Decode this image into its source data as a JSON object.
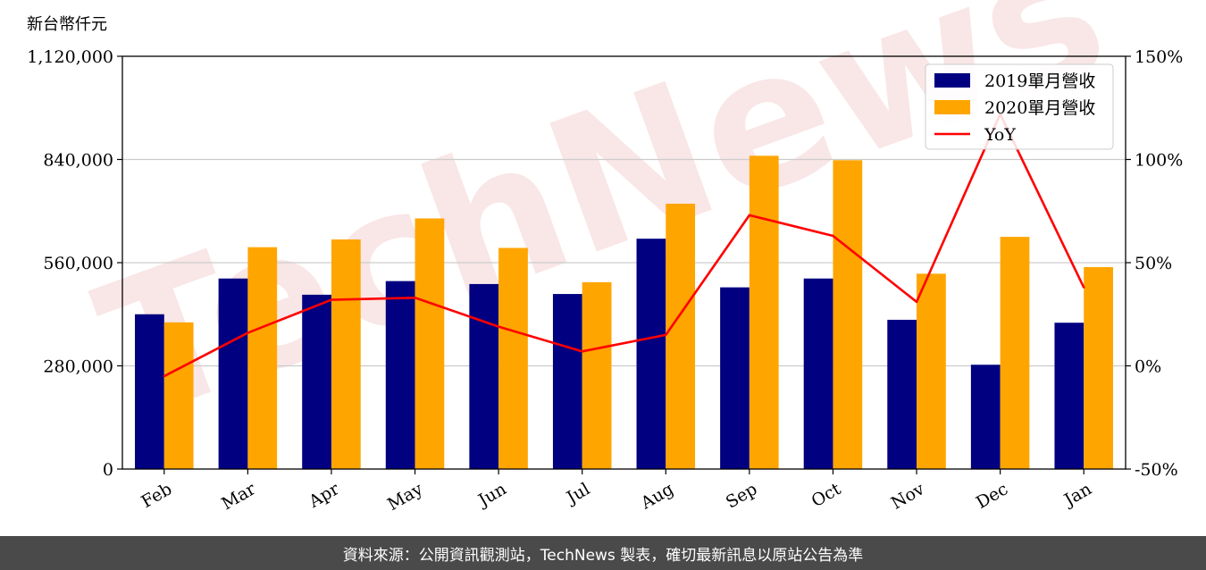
{
  "unit_label": "新台幣仟元",
  "footer_note": "資料來源：公開資訊觀測站，TechNews 製表，確切最新訊息以原站公告為準",
  "watermark": "TechNews",
  "colors": {
    "series_2019": "#000080",
    "series_2020": "#FFA500",
    "yoy": "#FF0000",
    "grid": "#cccccc",
    "footer_bg": "#4a4a4a"
  },
  "chart_data": {
    "type": "bar",
    "categories": [
      "Feb",
      "Mar",
      "Apr",
      "May",
      "Jun",
      "Jul",
      "Aug",
      "Sep",
      "Oct",
      "Nov",
      "Dec",
      "Jan"
    ],
    "series": [
      {
        "name": "2019單月營收",
        "type": "bar",
        "axis": "left",
        "values": [
          420000,
          517000,
          473000,
          510000,
          502000,
          475000,
          625000,
          493000,
          517000,
          405000,
          283000,
          397000
        ]
      },
      {
        "name": "2020單月營收",
        "type": "bar",
        "axis": "left",
        "values": [
          398000,
          602000,
          623000,
          680000,
          600000,
          507000,
          720000,
          850000,
          838000,
          530000,
          630000,
          548000
        ]
      },
      {
        "name": "YoY",
        "type": "line",
        "axis": "right",
        "values": [
          -5,
          16,
          32,
          33,
          19,
          7,
          15,
          73,
          63,
          31,
          122,
          38
        ]
      }
    ],
    "y_left": {
      "min": 0,
      "max": 1120000,
      "ticks": [
        "0",
        "280,000",
        "560,000",
        "840,000",
        "1,120,000"
      ],
      "tick_values": [
        0,
        280000,
        560000,
        840000,
        1120000
      ]
    },
    "y_right": {
      "min": -50,
      "max": 150,
      "ticks": [
        "-50%",
        "0%",
        "50%",
        "100%",
        "150%"
      ],
      "tick_values": [
        -50,
        0,
        50,
        100,
        150
      ]
    },
    "grid": true,
    "legend_position": "top-right"
  }
}
